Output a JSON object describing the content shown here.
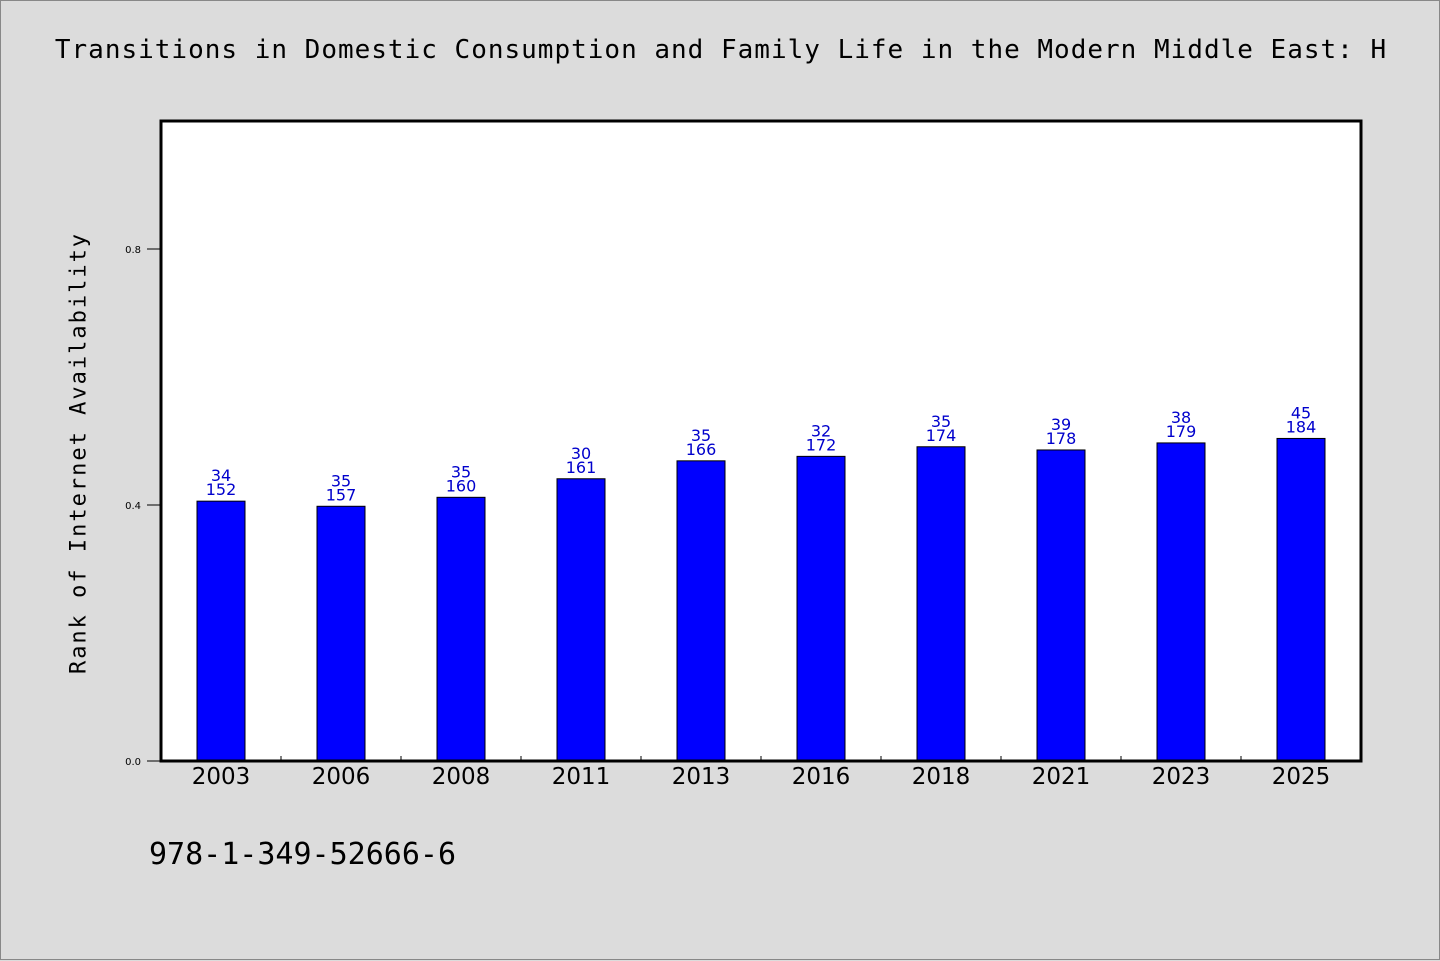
{
  "page": {
    "title": "Transitions in Domestic Consumption and Family Life in the Modern Middle East: H",
    "footer_text": "978-1-349-52666-6"
  },
  "colors": {
    "background": "#dcdcdc",
    "plot_background": "#ffffff",
    "bar_fill": "#0000ff",
    "bar_stroke": "#000000",
    "data_label": "#0000cc"
  },
  "chart_data": {
    "type": "bar",
    "title": "Transitions in Domestic Consumption and Family Life in the Modern Middle East: H",
    "xlabel": "",
    "ylabel": "Rank of Internet Availability",
    "categories": [
      "2003",
      "2006",
      "2008",
      "2011",
      "2013",
      "2016",
      "2018",
      "2021",
      "2023",
      "2025"
    ],
    "values": [
      0.406,
      0.398,
      0.412,
      0.441,
      0.469,
      0.476,
      0.491,
      0.486,
      0.497,
      0.504
    ],
    "label_top": [
      "34",
      "35",
      "35",
      "30",
      "35",
      "32",
      "35",
      "39",
      "38",
      "45"
    ],
    "label_bottom": [
      "152",
      "157",
      "160",
      "161",
      "166",
      "172",
      "174",
      "178",
      "179",
      "184"
    ],
    "ylim": [
      0,
      1.0
    ],
    "yticks": [
      0.0,
      0.4,
      0.8
    ],
    "ytick_labels": [
      "0.0",
      "0.4",
      "0.8"
    ],
    "grid": false,
    "legend": "none"
  }
}
